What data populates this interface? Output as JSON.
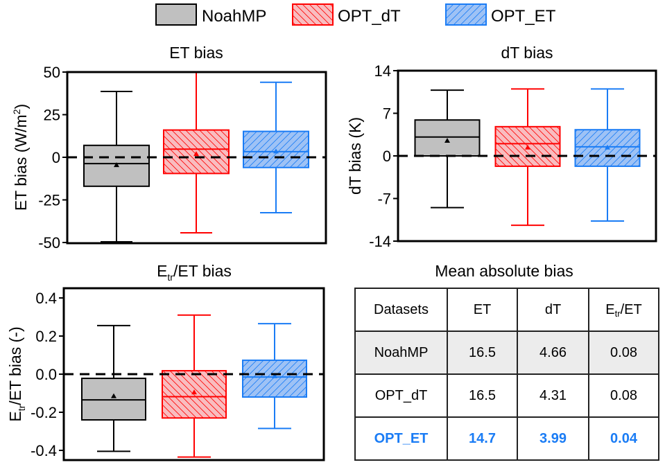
{
  "legend": {
    "items": [
      {
        "name": "NoahMP",
        "fill": "#c0c0c0",
        "stroke": "#000000",
        "hatch": "none"
      },
      {
        "name": "OPT_dT",
        "fill": "#f9bcbf",
        "stroke": "#ff0000",
        "hatch": "backslash"
      },
      {
        "name": "OPT_ET",
        "fill": "#9ec2f5",
        "stroke": "#1a7cf5",
        "hatch": "slash"
      }
    ]
  },
  "chart_data": [
    {
      "type": "box",
      "title": "ET bias",
      "ylabel": "ET bias (W/m²)",
      "ylabel_parts": {
        "main": "ET bias (W/m",
        "sup": "2",
        "end": ")"
      },
      "ylim": [
        -50,
        50
      ],
      "yticks": [
        50,
        25,
        0,
        -25,
        -50
      ],
      "ytick_labels": [
        "50",
        "25",
        "0",
        "-25",
        "-50"
      ],
      "reference_line": 0,
      "categories": [
        "NoahMP",
        "OPT_dT",
        "OPT_ET"
      ],
      "series": [
        {
          "name": "NoahMP",
          "whisker_low": -49.6,
          "q1": -17,
          "median": -3.7,
          "q3": 7,
          "whisker_high": 38.6,
          "mean": -4.5
        },
        {
          "name": "OPT_dT",
          "whisker_low": -44.3,
          "q1": -9.5,
          "median": 4.8,
          "q3": 16,
          "whisker_high": 50,
          "mean": 2
        },
        {
          "name": "OPT_ET",
          "whisker_low": -32.5,
          "q1": -6,
          "median": 3.3,
          "q3": 15.2,
          "whisker_high": 44,
          "mean": 3.5
        }
      ]
    },
    {
      "type": "box",
      "title": "dT bias",
      "ylabel": "dT bias (K)",
      "ylim": [
        -14,
        14
      ],
      "yticks": [
        14,
        7,
        0,
        -7,
        -14
      ],
      "ytick_labels": [
        "14",
        "7",
        "0",
        "-7",
        "-14"
      ],
      "reference_line": 0,
      "categories": [
        "NoahMP",
        "OPT_dT",
        "OPT_ET"
      ],
      "series": [
        {
          "name": "NoahMP",
          "whisker_low": -8.5,
          "q1": 0,
          "median": 3.1,
          "q3": 5.9,
          "whisker_high": 10.8,
          "mean": 2.5
        },
        {
          "name": "OPT_dT",
          "whisker_low": -11.4,
          "q1": -1.7,
          "median": 2.0,
          "q3": 4.8,
          "whisker_high": 11,
          "mean": 1.4
        },
        {
          "name": "OPT_ET",
          "whisker_low": -10.7,
          "q1": -1.7,
          "median": 1.5,
          "q3": 4.3,
          "whisker_high": 11,
          "mean": 1.4
        }
      ]
    },
    {
      "type": "box",
      "title": "Etr/ET bias",
      "title_parts": {
        "main": "E",
        "sub": "tr",
        "end": "/ET bias"
      },
      "ylabel": "Etr/ET bias (-)",
      "ylabel_parts": {
        "main": "E",
        "sub": "tr",
        "end": "/ET bias (-)"
      },
      "ylim": [
        -0.45,
        0.45
      ],
      "yticks": [
        0.4,
        0.2,
        0.0,
        -0.2,
        -0.4
      ],
      "ytick_labels": [
        "0.4",
        "0.2",
        "0.0",
        "-0.2",
        "-0.4"
      ],
      "reference_line": 0,
      "categories": [
        "NoahMP",
        "OPT_dT",
        "OPT_ET"
      ],
      "series": [
        {
          "name": "NoahMP",
          "whisker_low": -0.405,
          "q1": -0.24,
          "median": -0.135,
          "q3": -0.022,
          "whisker_high": 0.255,
          "mean": -0.115
        },
        {
          "name": "OPT_dT",
          "whisker_low": -0.435,
          "q1": -0.23,
          "median": -0.118,
          "q3": 0.018,
          "whisker_high": 0.31,
          "mean": -0.095
        },
        {
          "name": "OPT_ET",
          "whisker_low": -0.285,
          "q1": -0.12,
          "median": -0.015,
          "q3": 0.073,
          "whisker_high": 0.265,
          "mean": -0.01
        }
      ]
    },
    {
      "type": "table",
      "title": "Mean absolute bias",
      "columns": [
        "Datasets",
        "ET",
        "dT",
        "Etr/ET"
      ],
      "rows": [
        {
          "dataset": "NoahMP",
          "ET": "16.5",
          "dT": "4.66",
          "EtrET": "0.08",
          "style": "shaded"
        },
        {
          "dataset": "OPT_dT",
          "ET": "16.5",
          "dT": "4.31",
          "EtrET": "0.08",
          "style": "plain"
        },
        {
          "dataset": "OPT_ET",
          "ET": "14.7",
          "dT": "3.99",
          "EtrET": "0.04",
          "style": "highlight"
        }
      ]
    }
  ],
  "table_header_parts": {
    "etr_main": "E",
    "etr_sub": "tr",
    "etr_end": "/ET"
  }
}
